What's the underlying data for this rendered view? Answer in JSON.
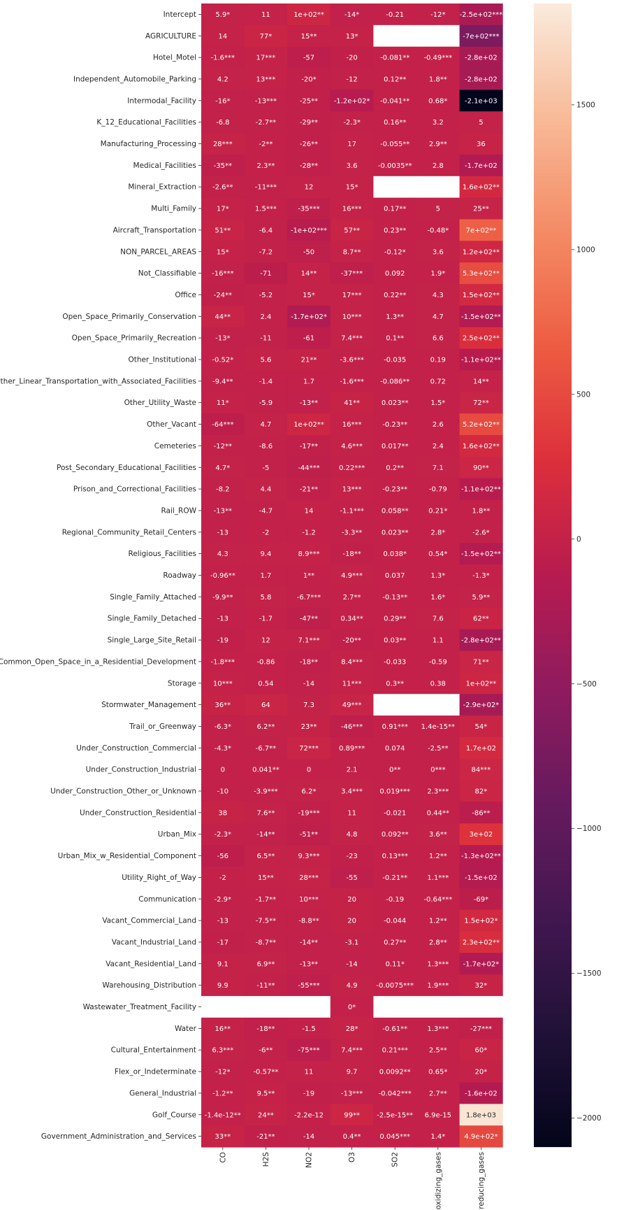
{
  "chart_data": {
    "type": "heatmap",
    "title": "",
    "xlabel": "",
    "ylabel": "",
    "columns": [
      "CO",
      "H2S",
      "NO2",
      "O3",
      "SO2",
      "oxidizing_gases",
      "reducing_gases"
    ],
    "rows": [
      "Intercept",
      "AGRICULTURE",
      "Hotel_Motel",
      "Independent_Automobile_Parking",
      "Intermodal_Facility",
      "K_12_Educational_Facilities",
      "Manufacturing_Processing",
      "Medical_Facilities",
      "Mineral_Extraction",
      "Multi_Family",
      "Aircraft_Transportation",
      "NON_PARCEL_AREAS",
      "Not_Classifiable",
      "Office",
      "Open_Space_Primarily_Conservation",
      "Open_Space_Primarily_Recreation",
      "Other_Institutional",
      "Other_Linear_Transportation_with_Associated_Facilities",
      "Other_Utility_Waste",
      "Other_Vacant",
      "Cemeteries",
      "Post_Secondary_Educational_Facilities",
      "Prison_and_Correctional_Facilities",
      "Rail_ROW",
      "Regional_Community_Retail_Centers",
      "Religious_Facilities",
      "Roadway",
      "Single_Family_Attached",
      "Single_Family_Detached",
      "Single_Large_Site_Retail",
      "Common_Open_Space_in_a_Residential_Development",
      "Storage",
      "Stormwater_Management",
      "Trail_or_Greenway",
      "Under_Construction_Commercial",
      "Under_Construction_Industrial",
      "Under_Construction_Other_or_Unknown",
      "Under_Construction_Residential",
      "Urban_Mix",
      "Urban_Mix_w_Residential_Component",
      "Utility_Right_of_Way",
      "Communication",
      "Vacant_Commercial_Land",
      "Vacant_Industrial_Land",
      "Vacant_Residential_Land",
      "Warehousing_Distribution",
      "Wastewater_Treatment_Facility",
      "Water",
      "Cultural_Entertainment",
      "Flex_or_Indeterminate",
      "General_Industrial",
      "Golf_Course",
      "Government_Administration_and_Services"
    ],
    "values": [
      [
        5.9,
        11,
        100,
        -14,
        -0.21,
        -12,
        -250
      ],
      [
        14,
        77,
        15,
        13,
        null,
        null,
        -700
      ],
      [
        -1.6,
        17,
        -57,
        -20,
        -0.081,
        -0.49,
        -280
      ],
      [
        4.2,
        13,
        -20,
        -12,
        0.12,
        1.8,
        -280
      ],
      [
        -16,
        -13,
        -25,
        -120,
        -0.041,
        0.68,
        -2100
      ],
      [
        -6.8,
        -2.7,
        -29,
        -2.3,
        0.16,
        3.2,
        5
      ],
      [
        28,
        -2,
        -26,
        17,
        -0.055,
        2.9,
        36
      ],
      [
        -35,
        2.3,
        -28,
        3.6,
        -0.0035,
        2.8,
        -170
      ],
      [
        -2.6,
        -11,
        12,
        15,
        null,
        null,
        160
      ],
      [
        17,
        1.5,
        -35,
        16,
        0.17,
        5,
        25
      ],
      [
        51,
        -6.4,
        -100,
        57,
        0.23,
        -0.48,
        700
      ],
      [
        15,
        -7.2,
        -50,
        8.7,
        -0.12,
        3.6,
        120
      ],
      [
        -16,
        -71,
        14,
        -37,
        0.092,
        1.9,
        530
      ],
      [
        -24,
        -5.2,
        15,
        17,
        0.22,
        4.3,
        150
      ],
      [
        44,
        2.4,
        -170,
        10,
        1.3,
        4.7,
        -150
      ],
      [
        -13,
        -11,
        -61,
        7.4,
        0.1,
        6.6,
        250
      ],
      [
        -0.52,
        5.6,
        21,
        -3.6,
        -0.035,
        0.19,
        -110
      ],
      [
        -9.4,
        -1.4,
        1.7,
        -1.6,
        -0.086,
        0.72,
        14
      ],
      [
        11,
        -5.9,
        -13,
        41,
        0.023,
        1.5,
        72
      ],
      [
        -64,
        4.7,
        100,
        16,
        -0.23,
        2.6,
        520
      ],
      [
        -12,
        -8.6,
        -17,
        4.6,
        0.017,
        2.4,
        160
      ],
      [
        4.7,
        -5,
        -44,
        0.22,
        0.2,
        7.1,
        90
      ],
      [
        -8.2,
        4.4,
        -21,
        13,
        -0.23,
        -0.79,
        -110
      ],
      [
        -13,
        -4.7,
        14,
        -1.1,
        0.058,
        0.21,
        1.8
      ],
      [
        -13,
        -2,
        -1.2,
        -3.3,
        0.023,
        2.8,
        -2.6
      ],
      [
        4.3,
        9.4,
        8.9,
        -18,
        0.038,
        0.54,
        -150
      ],
      [
        -0.96,
        1.7,
        1,
        4.9,
        0.037,
        1.3,
        -1.3
      ],
      [
        -9.9,
        5.8,
        -6.7,
        2.7,
        -0.13,
        1.6,
        5.9
      ],
      [
        -13,
        -1.7,
        -47,
        0.34,
        0.29,
        7.6,
        62
      ],
      [
        -19,
        12,
        7.1,
        -20,
        0.03,
        1.1,
        -280
      ],
      [
        -1.8,
        -0.86,
        -18,
        8.4,
        -0.033,
        -0.59,
        71
      ],
      [
        10,
        0.54,
        -14,
        11,
        0.3,
        0.38,
        100
      ],
      [
        36,
        64,
        7.3,
        49,
        null,
        null,
        -290
      ],
      [
        -6.3,
        6.2,
        23,
        -46,
        0.91,
        1.4e-15,
        54
      ],
      [
        -4.3,
        -6.7,
        72,
        0.89,
        0.074,
        -2.5,
        170
      ],
      [
        0,
        0.041,
        0,
        2.1,
        0,
        0,
        84
      ],
      [
        -10,
        -3.9,
        6.2,
        3.4,
        0.019,
        2.3,
        82
      ],
      [
        38,
        7.6,
        -19,
        11,
        -0.021,
        0.44,
        -86
      ],
      [
        -2.3,
        -14,
        -51,
        4.8,
        0.092,
        3.6,
        300
      ],
      [
        -56,
        6.5,
        9.3,
        -23,
        0.13,
        1.2,
        -130
      ],
      [
        -2,
        15,
        28,
        -55,
        -0.21,
        1.1,
        -150
      ],
      [
        -2.9,
        -1.7,
        10,
        20,
        -0.19,
        -0.64,
        -69
      ],
      [
        -13,
        -7.5,
        -8.8,
        20,
        -0.044,
        1.2,
        150
      ],
      [
        -17,
        -8.7,
        -14,
        -3.1,
        0.27,
        2.8,
        230
      ],
      [
        9.1,
        6.9,
        -13,
        -14,
        0.11,
        1.3,
        -170
      ],
      [
        9.9,
        -11,
        -55,
        4.9,
        -0.0075,
        1.9,
        32
      ],
      [
        null,
        null,
        null,
        0,
        null,
        null,
        null
      ],
      [
        16,
        -18,
        -1.5,
        28,
        -0.61,
        1.3,
        -27
      ],
      [
        6.3,
        -6,
        -75,
        7.4,
        0.21,
        2.5,
        60
      ],
      [
        -12,
        -0.57,
        11,
        9.7,
        0.0092,
        0.65,
        20
      ],
      [
        -1.2,
        9.5,
        -19,
        -13,
        -0.042,
        2.7,
        -160
      ],
      [
        -1.4e-12,
        24,
        -2.2e-12,
        99,
        -2.5e-15,
        6.9e-15,
        1800
      ],
      [
        33,
        -21,
        -14,
        0.4,
        0.045,
        1.4,
        490
      ]
    ],
    "annotations": [
      [
        "5.9*",
        "11",
        "1e+02**",
        "-14*",
        "-0.21",
        "-12*",
        "-2.5e+02***"
      ],
      [
        "14",
        "77*",
        "15**",
        "13*",
        "",
        "",
        "-7e+02***"
      ],
      [
        "-1.6***",
        "17***",
        "-57",
        "-20",
        "-0.081**",
        "-0.49***",
        "-2.8e+02"
      ],
      [
        "4.2",
        "13***",
        "-20*",
        "-12",
        "0.12**",
        "1.8**",
        "-2.8e+02"
      ],
      [
        "-16*",
        "-13***",
        "-25**",
        "-1.2e+02*",
        "-0.041**",
        "0.68*",
        "-2.1e+03"
      ],
      [
        "-6.8",
        "-2.7**",
        "-29**",
        "-2.3*",
        "0.16**",
        "3.2",
        "5"
      ],
      [
        "28***",
        "-2**",
        "-26**",
        "17",
        "-0.055**",
        "2.9**",
        "36"
      ],
      [
        "-35**",
        "2.3**",
        "-28**",
        "3.6",
        "-0.0035**",
        "2.8",
        "-1.7e+02"
      ],
      [
        "-2.6**",
        "-11***",
        "12",
        "15*",
        "",
        "",
        "1.6e+02**"
      ],
      [
        "17*",
        "1.5***",
        "-35***",
        "16***",
        "0.17**",
        "5",
        "25**"
      ],
      [
        "51**",
        "-6.4",
        "-1e+02***",
        "57**",
        "0.23**",
        "-0.48*",
        "7e+02**"
      ],
      [
        "15*",
        "-7.2",
        "-50",
        "8.7**",
        "-0.12*",
        "3.6",
        "1.2e+02**"
      ],
      [
        "-16***",
        "-71",
        "14**",
        "-37***",
        "0.092",
        "1.9*",
        "5.3e+02**"
      ],
      [
        "-24**",
        "-5.2",
        "15*",
        "17***",
        "0.22**",
        "4.3",
        "1.5e+02**"
      ],
      [
        "44**",
        "2.4",
        "-1.7e+02*",
        "10***",
        "1.3**",
        "4.7",
        "-1.5e+02**"
      ],
      [
        "-13*",
        "-11",
        "-61",
        "7.4***",
        "0.1**",
        "6.6",
        "2.5e+02**"
      ],
      [
        "-0.52*",
        "5.6",
        "21**",
        "-3.6***",
        "-0.035",
        "0.19",
        "-1.1e+02**"
      ],
      [
        "-9.4**",
        "-1.4",
        "1.7",
        "-1.6***",
        "-0.086**",
        "0.72",
        "14**"
      ],
      [
        "11*",
        "-5.9",
        "-13**",
        "41**",
        "0.023**",
        "1.5*",
        "72**"
      ],
      [
        "-64***",
        "4.7",
        "1e+02**",
        "16***",
        "-0.23**",
        "2.6",
        "5.2e+02**"
      ],
      [
        "-12**",
        "-8.6",
        "-17**",
        "4.6***",
        "0.017**",
        "2.4",
        "1.6e+02**"
      ],
      [
        "4.7*",
        "-5",
        "-44***",
        "0.22***",
        "0.2**",
        "7.1",
        "90**"
      ],
      [
        "-8.2",
        "4.4",
        "-21**",
        "13***",
        "-0.23**",
        "-0.79",
        "-1.1e+02**"
      ],
      [
        "-13**",
        "-4.7",
        "14",
        "-1.1***",
        "0.058**",
        "0.21*",
        "1.8**"
      ],
      [
        "-13",
        "-2",
        "-1.2",
        "-3.3**",
        "0.023**",
        "2.8*",
        "-2.6*"
      ],
      [
        "4.3",
        "9.4",
        "8.9***",
        "-18**",
        "0.038*",
        "0.54*",
        "-1.5e+02**"
      ],
      [
        "-0.96**",
        "1.7",
        "1**",
        "4.9***",
        "0.037",
        "1.3*",
        "-1.3*"
      ],
      [
        "-9.9**",
        "5.8",
        "-6.7***",
        "2.7**",
        "-0.13**",
        "1.6*",
        "5.9**"
      ],
      [
        "-13",
        "-1.7",
        "-47**",
        "0.34**",
        "0.29**",
        "7.6",
        "62**"
      ],
      [
        "-19",
        "12",
        "7.1***",
        "-20**",
        "0.03**",
        "1.1",
        "-2.8e+02**"
      ],
      [
        "-1.8***",
        "-0.86",
        "-18**",
        "8.4***",
        "-0.033",
        "-0.59",
        "71**"
      ],
      [
        "10***",
        "0.54",
        "-14",
        "11***",
        "0.3**",
        "0.38",
        "1e+02**"
      ],
      [
        "36**",
        "64",
        "7.3",
        "49***",
        "",
        "",
        "-2.9e+02*"
      ],
      [
        "-6.3*",
        "6.2**",
        "23**",
        "-46***",
        "0.91***",
        "1.4e-15**",
        "54*"
      ],
      [
        "-4.3*",
        "-6.7**",
        "72***",
        "0.89***",
        "0.074",
        "-2.5**",
        "1.7e+02"
      ],
      [
        "0",
        "0.041**",
        "0",
        "2.1",
        "0**",
        "0***",
        "84***"
      ],
      [
        "-10",
        "-3.9***",
        "6.2*",
        "3.4***",
        "0.019***",
        "2.3***",
        "82*"
      ],
      [
        "38",
        "7.6**",
        "-19***",
        "11",
        "-0.021",
        "0.44**",
        "-86**"
      ],
      [
        "-2.3*",
        "-14**",
        "-51**",
        "4.8",
        "0.092**",
        "3.6**",
        "3e+02"
      ],
      [
        "-56",
        "6.5**",
        "9.3***",
        "-23",
        "0.13***",
        "1.2**",
        "-1.3e+02**"
      ],
      [
        "-2",
        "15**",
        "28***",
        "-55",
        "-0.21**",
        "1.1***",
        "-1.5e+02"
      ],
      [
        "-2.9*",
        "-1.7**",
        "10***",
        "20",
        "-0.19",
        "-0.64***",
        "-69*"
      ],
      [
        "-13",
        "-7.5**",
        "-8.8**",
        "20",
        "-0.044",
        "1.2**",
        "1.5e+02*"
      ],
      [
        "-17",
        "-8.7**",
        "-14**",
        "-3.1",
        "0.27**",
        "2.8**",
        "2.3e+02**"
      ],
      [
        "9.1",
        "6.9**",
        "-13**",
        "-14",
        "0.11*",
        "1.3***",
        "-1.7e+02*"
      ],
      [
        "9.9",
        "-11**",
        "-55***",
        "4.9",
        "-0.0075***",
        "1.9***",
        "32*"
      ],
      [
        "",
        "",
        "",
        "0*",
        "",
        "",
        ""
      ],
      [
        "16**",
        "-18**",
        "-1.5",
        "28*",
        "-0.61**",
        "1.3***",
        "-27***"
      ],
      [
        "6.3***",
        "-6**",
        "-75***",
        "7.4***",
        "0.21***",
        "2.5**",
        "60*"
      ],
      [
        "-12*",
        "-0.57**",
        "11",
        "9.7",
        "0.0092**",
        "0.65*",
        "20*"
      ],
      [
        "-1.2**",
        "9.5**",
        "-19",
        "-13***",
        "-0.042***",
        "2.7**",
        "-1.6e+02"
      ],
      [
        "-1.4e-12**",
        "24**",
        "-2.2e-12",
        "99**",
        "-2.5e-15**",
        "6.9e-15",
        "1.8e+03"
      ],
      [
        "33**",
        "-21**",
        "-14",
        "0.4**",
        "0.045***",
        "1.4*",
        "4.9e+02*"
      ]
    ],
    "colorbar": {
      "vmin": -2100,
      "vmax": 1850,
      "ticks": [
        1500,
        1000,
        500,
        0,
        -500,
        -1000,
        -1500,
        -2000
      ],
      "tick_labels": [
        "1500",
        "1000",
        "500",
        "0",
        "−500",
        "−1000",
        "−1500",
        "−2000"
      ],
      "colormap": "rocket",
      "orientation": "vertical"
    },
    "missing_color": "#ffffff"
  }
}
